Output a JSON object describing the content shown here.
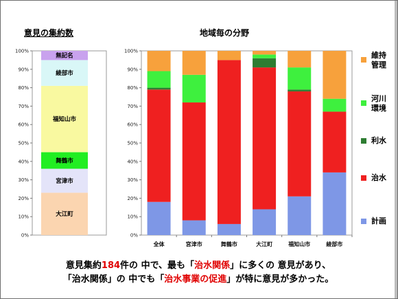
{
  "titles": {
    "left": "意見の集約数",
    "right": "地域毎の分野"
  },
  "summary": {
    "line1_a": "意見集約",
    "line1_count": "184",
    "line1_b": "件の 中で、最も「",
    "line1_hl": "治水関係",
    "line1_c": "」に多くの 意見があり、",
    "line2_a": "「治水関係」の 中でも「",
    "line2_hl": "治水事業の促進",
    "line2_b": "」が特に意見が多かった。"
  },
  "colors": {
    "planning": "#7e97e6",
    "flood_control": "#ef2020",
    "water_use": "#2e7d32",
    "river_env": "#3ef03e",
    "maintenance": "#f7a13c",
    "left_nameless": "#c9a2ee",
    "left_ayabe": "#d9f7f7",
    "left_fukuchiyama": "#f9f9a0",
    "left_maizuru": "#22ee22",
    "left_miyazu": "#e4e4f9",
    "left_oe": "#fbd5b0"
  },
  "chart_data": [
    {
      "type": "bar",
      "stacked": true,
      "title": "意見の集約数",
      "ylim": [
        0,
        100
      ],
      "yticks": [
        "0%",
        "10%",
        "20%",
        "30%",
        "40%",
        "50%",
        "60%",
        "70%",
        "80%",
        "90%",
        "100%"
      ],
      "segments": [
        {
          "name": "大江町",
          "value": 23,
          "color": "#fbd5b0"
        },
        {
          "name": "宮津市",
          "value": 13,
          "color": "#e4e4f9"
        },
        {
          "name": "舞鶴市",
          "value": 9,
          "color": "#22ee22"
        },
        {
          "name": "福知山市",
          "value": 36,
          "color": "#f9f9a0"
        },
        {
          "name": "綾部市",
          "value": 14,
          "color": "#d9f7f7"
        },
        {
          "name": "無記名",
          "value": 5,
          "color": "#c9a2ee"
        }
      ]
    },
    {
      "type": "bar",
      "stacked": true,
      "title": "地域毎の分野",
      "ylim": [
        0,
        100
      ],
      "yticks": [
        "0%",
        "10%",
        "20%",
        "30%",
        "40%",
        "50%",
        "60%",
        "70%",
        "80%",
        "90%",
        "100%"
      ],
      "categories": [
        "全体",
        "宮津市",
        "舞鶴市",
        "大江町",
        "福知山市",
        "綾部市"
      ],
      "series": [
        {
          "name": "計画",
          "color": "#7e97e6",
          "values": [
            18,
            8,
            6,
            14,
            21,
            34
          ]
        },
        {
          "name": "治水",
          "color": "#ef2020",
          "values": [
            61,
            64,
            89,
            77,
            57,
            33
          ]
        },
        {
          "name": "利水",
          "color": "#2e7d32",
          "values": [
            1,
            0,
            0,
            5,
            1,
            0
          ]
        },
        {
          "name": "河川\n環境",
          "color": "#3ef03e",
          "values": [
            9,
            15,
            0,
            2,
            12,
            7
          ]
        },
        {
          "name": "維持\n管理",
          "color": "#f7a13c",
          "values": [
            11,
            13,
            5,
            2,
            9,
            26
          ]
        }
      ],
      "legend_position": "right",
      "legend_order": [
        "維持\n管理",
        "河川\n環境",
        "利水",
        "治水",
        "計画"
      ]
    }
  ]
}
